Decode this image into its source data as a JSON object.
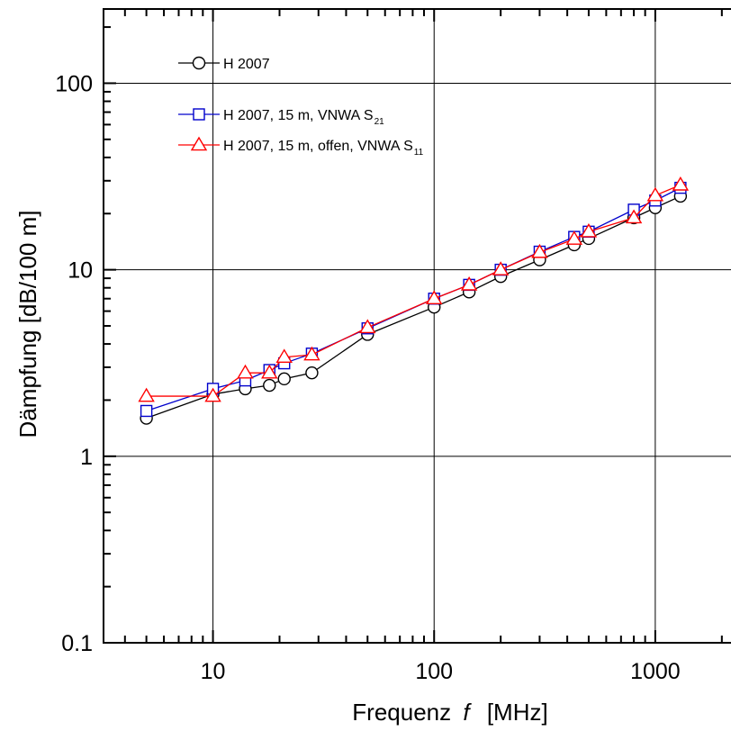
{
  "chart_data": {
    "type": "line",
    "title": "",
    "xlabel": "Frequenz",
    "xlabel_symbol": "f",
    "xlabel_unit": "[MHz]",
    "ylabel": "Dämpfung [dB/100 m]",
    "xscale": "log",
    "yscale": "log",
    "xlim": [
      3.2,
      2200
    ],
    "ylim": [
      0.1,
      250
    ],
    "x_ticks": [
      10,
      100,
      1000
    ],
    "x_tick_labels": [
      "10",
      "100",
      "1000"
    ],
    "y_ticks": [
      0.1,
      1,
      10,
      100
    ],
    "y_tick_labels": [
      "0.1",
      "1",
      "10",
      "100"
    ],
    "grid": true,
    "legend_position": "top-left",
    "series": [
      {
        "name": "H 2007",
        "color": "#000000",
        "marker": "circle",
        "x": [
          5,
          10,
          14,
          18,
          21,
          28,
          50,
          100,
          144,
          200,
          300,
          430,
          500,
          800,
          1000,
          1300
        ],
        "y": [
          1.6,
          2.15,
          2.3,
          2.4,
          2.6,
          2.8,
          4.5,
          6.3,
          7.6,
          9.2,
          11.3,
          13.6,
          14.7,
          19,
          21.5,
          24.8
        ]
      },
      {
        "name": "H 2007, 15 m, VNWA S",
        "name_sub": "21",
        "color": "#0000cc",
        "marker": "square",
        "x": [
          5,
          10,
          14,
          18,
          21,
          28,
          50,
          100,
          144,
          200,
          300,
          430,
          500,
          800,
          1000,
          1300
        ],
        "y": [
          1.75,
          2.3,
          2.55,
          2.9,
          3.15,
          3.55,
          4.85,
          7.0,
          8.3,
          10.0,
          12.5,
          15.0,
          16.0,
          21.0,
          23.5,
          27.5
        ]
      },
      {
        "name": "H 2007, 15 m, offen, VNWA S",
        "name_sub": "11",
        "color": "#ff0000",
        "marker": "triangle",
        "x": [
          5,
          10,
          14,
          18,
          21,
          28,
          50,
          100,
          144,
          200,
          300,
          430,
          500,
          800,
          1000,
          1300
        ],
        "y": [
          2.1,
          2.1,
          2.8,
          2.8,
          3.4,
          3.5,
          4.9,
          7.0,
          8.3,
          10.0,
          12.4,
          14.6,
          16.0,
          19.0,
          25.0,
          28.5
        ]
      }
    ]
  }
}
